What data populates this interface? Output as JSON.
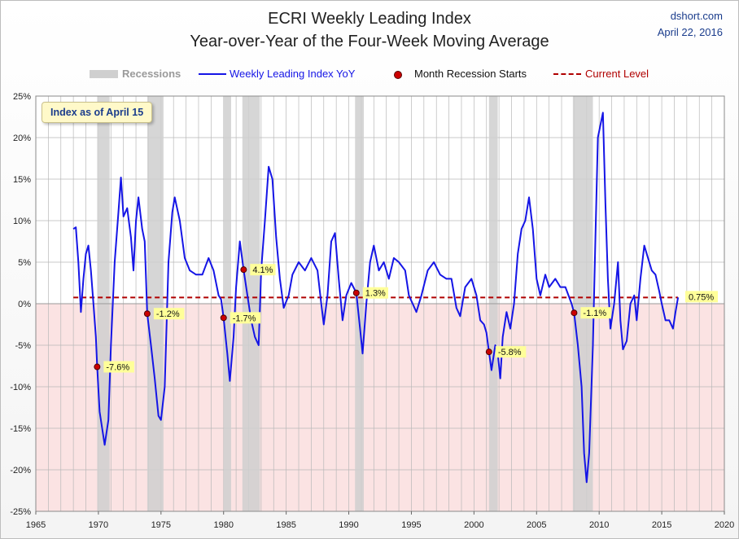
{
  "header": {
    "title_line1": "ECRI Weekly Leading Index",
    "title_line2": "Year-over-Year of the Four-Week Moving Average",
    "source": "dshort.com",
    "date": "April 22, 2016"
  },
  "note": "Index as of April 15",
  "legend": {
    "recessions": "Recessions",
    "series": "Weekly Leading Index YoY",
    "starts": "Month Recession Starts",
    "current": "Current Level"
  },
  "colors": {
    "line": "#1515e6",
    "recession_band": "#cfcfcf",
    "negative_zone": "#fbe3e3",
    "marker": "#cc0000",
    "current_level": "#b00000",
    "label_bg": "#ffff99"
  },
  "chart_data": {
    "type": "line",
    "title": "ECRI Weekly Leading Index — Year-over-Year of the Four-Week Moving Average",
    "xlabel": "",
    "ylabel": "",
    "xlim": [
      1965,
      2020
    ],
    "ylim": [
      -25,
      25
    ],
    "x_ticks": [
      1965,
      1970,
      1975,
      1980,
      1985,
      1990,
      1995,
      2000,
      2005,
      2010,
      2015,
      2020
    ],
    "y_ticks": [
      -25,
      -20,
      -15,
      -10,
      -5,
      0,
      5,
      10,
      15,
      20,
      25
    ],
    "y_tick_labels": [
      "-25%",
      "-20%",
      "-15%",
      "-10%",
      "-5%",
      "0%",
      "5%",
      "10%",
      "15%",
      "20%",
      "25%"
    ],
    "grid": true,
    "legend_position": "top",
    "current_level": 0.75,
    "current_level_label": "0.75%",
    "recessions": [
      [
        1969.9,
        1970.9
      ],
      [
        1973.9,
        1975.2
      ],
      [
        1980.0,
        1980.6
      ],
      [
        1981.5,
        1982.9
      ],
      [
        1990.5,
        1991.2
      ],
      [
        2001.2,
        2001.9
      ],
      [
        2007.9,
        2009.5
      ]
    ],
    "recession_starts": [
      {
        "x": 1969.9,
        "y": -7.6,
        "label": "-7.6%"
      },
      {
        "x": 1973.9,
        "y": -1.2,
        "label": "-1.2%"
      },
      {
        "x": 1980.0,
        "y": -1.7,
        "label": "-1.7%"
      },
      {
        "x": 1981.6,
        "y": 4.1,
        "label": "4.1%"
      },
      {
        "x": 1990.6,
        "y": 1.3,
        "label": "1.3%"
      },
      {
        "x": 2001.2,
        "y": -5.8,
        "label": "-5.8%"
      },
      {
        "x": 2008.0,
        "y": -1.1,
        "label": "-1.1%"
      }
    ],
    "series": [
      {
        "name": "Weekly Leading Index YoY",
        "points": [
          [
            1968.0,
            9.0
          ],
          [
            1968.2,
            9.2
          ],
          [
            1968.4,
            5.0
          ],
          [
            1968.6,
            -1.0
          ],
          [
            1968.8,
            3.0
          ],
          [
            1969.0,
            6.0
          ],
          [
            1969.2,
            7.0
          ],
          [
            1969.4,
            4.0
          ],
          [
            1969.6,
            0.0
          ],
          [
            1969.8,
            -4.0
          ],
          [
            1969.9,
            -7.6
          ],
          [
            1970.1,
            -13.0
          ],
          [
            1970.3,
            -15.0
          ],
          [
            1970.5,
            -17.0
          ],
          [
            1970.8,
            -14.0
          ],
          [
            1971.0,
            -5.0
          ],
          [
            1971.3,
            5.0
          ],
          [
            1971.6,
            11.0
          ],
          [
            1971.8,
            15.2
          ],
          [
            1972.0,
            10.5
          ],
          [
            1972.3,
            11.5
          ],
          [
            1972.6,
            8.0
          ],
          [
            1972.8,
            4.0
          ],
          [
            1973.0,
            10.0
          ],
          [
            1973.2,
            12.8
          ],
          [
            1973.5,
            9.0
          ],
          [
            1973.7,
            7.5
          ],
          [
            1973.9,
            -1.2
          ],
          [
            1974.2,
            -5.0
          ],
          [
            1974.5,
            -9.0
          ],
          [
            1974.8,
            -13.5
          ],
          [
            1975.0,
            -14.0
          ],
          [
            1975.3,
            -10.0
          ],
          [
            1975.6,
            5.0
          ],
          [
            1975.9,
            11.0
          ],
          [
            1976.1,
            12.8
          ],
          [
            1976.5,
            10.0
          ],
          [
            1976.9,
            5.5
          ],
          [
            1977.3,
            4.0
          ],
          [
            1977.8,
            3.5
          ],
          [
            1978.3,
            3.5
          ],
          [
            1978.8,
            5.5
          ],
          [
            1979.2,
            4.0
          ],
          [
            1979.6,
            1.0
          ],
          [
            1979.8,
            0.5
          ],
          [
            1980.0,
            -1.7
          ],
          [
            1980.3,
            -6.0
          ],
          [
            1980.5,
            -9.3
          ],
          [
            1980.8,
            -4.0
          ],
          [
            1981.0,
            2.0
          ],
          [
            1981.3,
            7.5
          ],
          [
            1981.6,
            4.1
          ],
          [
            1981.9,
            1.0
          ],
          [
            1982.2,
            -2.0
          ],
          [
            1982.5,
            -4.0
          ],
          [
            1982.8,
            -5.0
          ],
          [
            1983.0,
            4.0
          ],
          [
            1983.3,
            10.0
          ],
          [
            1983.6,
            16.5
          ],
          [
            1983.9,
            15.0
          ],
          [
            1984.2,
            8.0
          ],
          [
            1984.5,
            3.0
          ],
          [
            1984.8,
            -0.5
          ],
          [
            1985.2,
            1.0
          ],
          [
            1985.5,
            3.5
          ],
          [
            1986.0,
            5.0
          ],
          [
            1986.5,
            4.0
          ],
          [
            1987.0,
            5.5
          ],
          [
            1987.5,
            4.0
          ],
          [
            1987.8,
            0.0
          ],
          [
            1988.0,
            -2.5
          ],
          [
            1988.3,
            1.0
          ],
          [
            1988.6,
            7.5
          ],
          [
            1988.9,
            8.5
          ],
          [
            1989.2,
            3.0
          ],
          [
            1989.5,
            -2.0
          ],
          [
            1989.8,
            1.0
          ],
          [
            1990.2,
            2.5
          ],
          [
            1990.6,
            1.3
          ],
          [
            1990.9,
            -3.0
          ],
          [
            1991.1,
            -6.0
          ],
          [
            1991.4,
            0.0
          ],
          [
            1991.7,
            5.0
          ],
          [
            1992.0,
            7.0
          ],
          [
            1992.4,
            4.0
          ],
          [
            1992.8,
            5.0
          ],
          [
            1993.2,
            3.0
          ],
          [
            1993.6,
            5.5
          ],
          [
            1994.0,
            5.0
          ],
          [
            1994.5,
            4.0
          ],
          [
            1994.8,
            1.0
          ],
          [
            1995.1,
            0.0
          ],
          [
            1995.4,
            -1.0
          ],
          [
            1995.8,
            1.0
          ],
          [
            1996.3,
            4.0
          ],
          [
            1996.8,
            5.0
          ],
          [
            1997.3,
            3.5
          ],
          [
            1997.8,
            3.0
          ],
          [
            1998.2,
            3.0
          ],
          [
            1998.6,
            -0.5
          ],
          [
            1998.9,
            -1.5
          ],
          [
            1999.3,
            2.0
          ],
          [
            1999.8,
            3.0
          ],
          [
            2000.2,
            1.0
          ],
          [
            2000.5,
            -2.0
          ],
          [
            2000.8,
            -2.5
          ],
          [
            2001.0,
            -3.5
          ],
          [
            2001.2,
            -5.8
          ],
          [
            2001.4,
            -8.0
          ],
          [
            2001.7,
            -5.0
          ],
          [
            2001.9,
            -6.0
          ],
          [
            2002.1,
            -9.0
          ],
          [
            2002.3,
            -4.0
          ],
          [
            2002.6,
            -1.0
          ],
          [
            2002.9,
            -3.0
          ],
          [
            2003.2,
            0.0
          ],
          [
            2003.5,
            6.0
          ],
          [
            2003.8,
            9.0
          ],
          [
            2004.1,
            10.0
          ],
          [
            2004.4,
            12.8
          ],
          [
            2004.7,
            9.0
          ],
          [
            2005.0,
            3.0
          ],
          [
            2005.3,
            1.0
          ],
          [
            2005.7,
            3.5
          ],
          [
            2006.0,
            2.0
          ],
          [
            2006.5,
            3.0
          ],
          [
            2006.9,
            2.0
          ],
          [
            2007.3,
            2.0
          ],
          [
            2007.8,
            0.0
          ],
          [
            2008.0,
            -1.1
          ],
          [
            2008.3,
            -5.0
          ],
          [
            2008.6,
            -10.0
          ],
          [
            2008.8,
            -18.0
          ],
          [
            2009.0,
            -21.5
          ],
          [
            2009.2,
            -18.0
          ],
          [
            2009.5,
            -5.0
          ],
          [
            2009.7,
            8.0
          ],
          [
            2009.9,
            20.0
          ],
          [
            2010.1,
            21.5
          ],
          [
            2010.3,
            23.0
          ],
          [
            2010.5,
            12.0
          ],
          [
            2010.7,
            3.0
          ],
          [
            2010.9,
            -3.0
          ],
          [
            2011.2,
            0.0
          ],
          [
            2011.5,
            5.0
          ],
          [
            2011.7,
            -2.0
          ],
          [
            2011.9,
            -5.5
          ],
          [
            2012.2,
            -4.5
          ],
          [
            2012.5,
            0.0
          ],
          [
            2012.8,
            1.0
          ],
          [
            2013.0,
            -2.0
          ],
          [
            2013.3,
            3.0
          ],
          [
            2013.6,
            7.0
          ],
          [
            2013.9,
            5.5
          ],
          [
            2014.2,
            4.0
          ],
          [
            2014.5,
            3.5
          ],
          [
            2014.8,
            1.5
          ],
          [
            2015.0,
            0.0
          ],
          [
            2015.3,
            -2.0
          ],
          [
            2015.6,
            -2.0
          ],
          [
            2015.9,
            -3.0
          ],
          [
            2016.1,
            -1.0
          ],
          [
            2016.3,
            0.75
          ]
        ]
      }
    ]
  }
}
